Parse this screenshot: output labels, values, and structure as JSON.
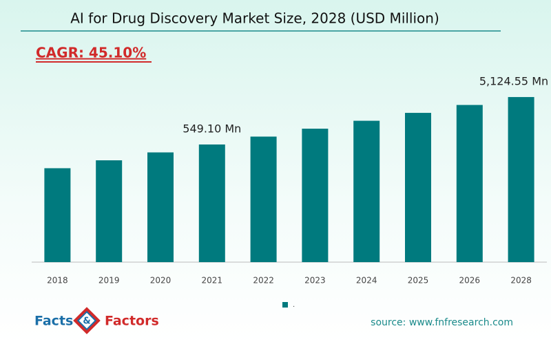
{
  "chart_data": {
    "type": "bar",
    "title": "AI for Drug Discovery Market Size, 2028 (USD Million)",
    "categories": [
      "2018",
      "2019",
      "2020",
      "2021",
      "2022",
      "2023",
      "2024",
      "2025",
      "2026",
      "2028"
    ],
    "series": [
      {
        "name": ".",
        "color": "#007a7e",
        "values": [
          179.7,
          260.8,
          378.4,
          549.1,
          796.7,
          1156.0,
          1677.4,
          2433.9,
          3531.6,
          5124.55
        ],
        "value_labels": [
          null,
          null,
          null,
          "549.10 Mn",
          null,
          null,
          null,
          null,
          null,
          "5,124.55 Mn"
        ]
      }
    ],
    "ylim": [
      2.16,
      19380
    ],
    "log_scale": true,
    "grid": false,
    "legend": "bottom"
  },
  "cagr": "CAGR: 45.10%",
  "logo": {
    "left": "Facts",
    "amp": "&",
    "right": "Factors"
  },
  "source": "source: www.fnfresearch.com"
}
